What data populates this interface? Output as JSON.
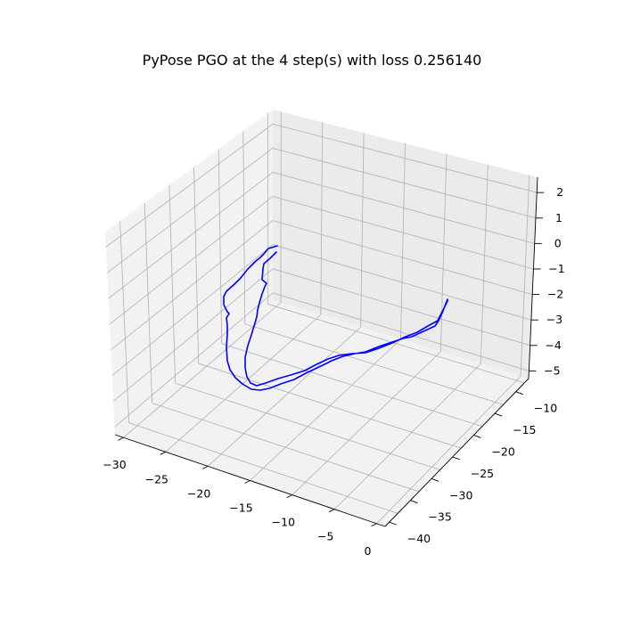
{
  "chart_data": {
    "type": "line",
    "projection": "3d",
    "title": "PyPose PGO at the 4 step(s) with loss 0.256140",
    "xlabel": "",
    "ylabel": "",
    "zlabel": "",
    "xlim": [
      -31,
      1
    ],
    "ylim": [
      -41,
      -7
    ],
    "zlim": [
      -5.3,
      2.6
    ],
    "x_ticks": [
      -30,
      -25,
      -20,
      -15,
      -10,
      -5,
      0
    ],
    "y_ticks": [
      -10,
      -15,
      -20,
      -25,
      -30,
      -35,
      -40
    ],
    "z_ticks": [
      2,
      1,
      0,
      -1,
      -2,
      -3,
      -4,
      -5
    ],
    "x_tick_labels": [
      "−30",
      "−25",
      "−20",
      "−15",
      "−10",
      "−5",
      "0"
    ],
    "y_tick_labels": [
      "−10",
      "−15",
      "−20",
      "−25",
      "−30",
      "−35",
      "−40"
    ],
    "z_tick_labels": [
      "2",
      "1",
      "0",
      "−1",
      "−2",
      "−3",
      "−4",
      "−5"
    ],
    "grid": true,
    "pane_color": "#f2f2f2",
    "line_color": "#0000ff"
  }
}
